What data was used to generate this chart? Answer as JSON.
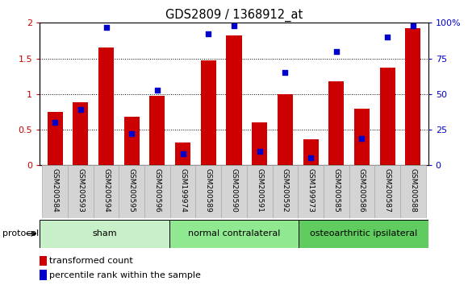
{
  "title": "GDS2809 / 1368912_at",
  "samples": [
    "GSM200584",
    "GSM200593",
    "GSM200594",
    "GSM200595",
    "GSM200596",
    "GSM199974",
    "GSM200589",
    "GSM200590",
    "GSM200591",
    "GSM200592",
    "GSM199973",
    "GSM200585",
    "GSM200586",
    "GSM200587",
    "GSM200588"
  ],
  "red_values": [
    0.75,
    0.88,
    1.65,
    0.68,
    0.98,
    0.32,
    1.47,
    1.82,
    0.6,
    1.0,
    0.36,
    1.18,
    0.8,
    1.37,
    1.93
  ],
  "blue_pct": [
    30,
    39,
    97,
    22,
    53,
    8,
    92,
    98,
    10,
    65,
    5,
    80,
    19,
    90,
    98
  ],
  "group_boundaries": [
    0,
    5,
    10,
    15
  ],
  "group_labels": [
    "sham",
    "normal contralateral",
    "osteoarthritic ipsilateral"
  ],
  "group_colors": [
    "#c8f0c8",
    "#90e890",
    "#60cc60"
  ],
  "protocol_label": "protocol",
  "ylim_left": [
    0,
    2.0
  ],
  "ylim_right": [
    0,
    100
  ],
  "yticks_left": [
    0,
    0.5,
    1.0,
    1.5,
    2.0
  ],
  "yticks_right": [
    0,
    25,
    50,
    75,
    100
  ],
  "bar_color": "#cc0000",
  "dot_color": "#0000cc",
  "bg_color": "#ffffff",
  "bar_width": 0.6,
  "figsize": [
    5.8,
    3.54
  ],
  "dpi": 100
}
